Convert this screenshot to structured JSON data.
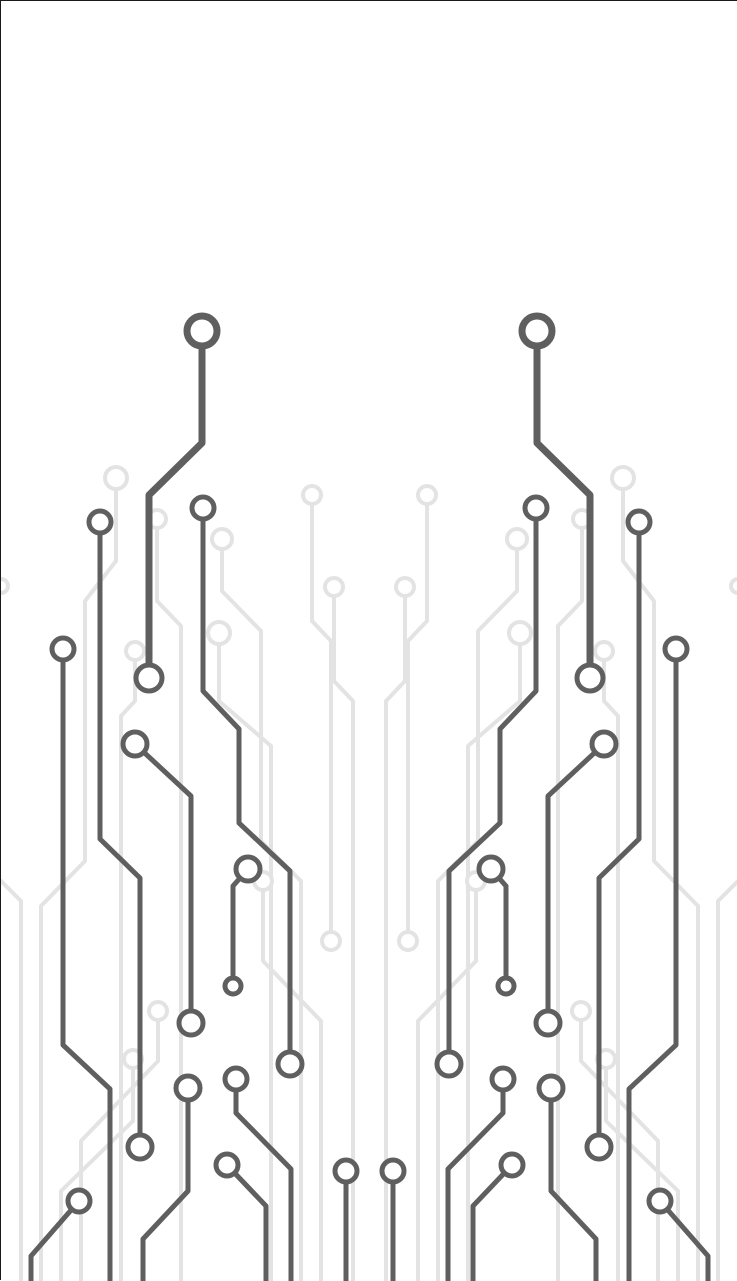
{
  "wallpaper": {
    "subject": "circuit-board-traces",
    "symmetry": "mirrored-left-right",
    "colors": {
      "background": "#ffffff",
      "trace_dark": "#5f5f5f",
      "trace_light": "#e3e3e3",
      "frame": "#1a1a1a"
    }
  }
}
